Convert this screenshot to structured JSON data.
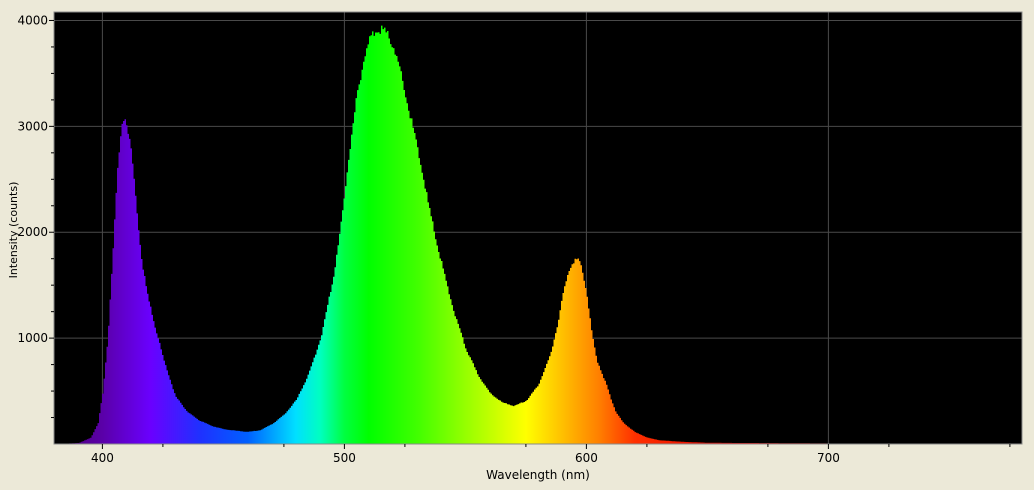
{
  "window": {
    "background": "#ece9d8"
  },
  "chart_data": {
    "type": "area",
    "xlabel": "Wavelength (nm)",
    "ylabel": "Intensity (counts)",
    "xlim": [
      380,
      780
    ],
    "ylim": [
      0,
      4080
    ],
    "x_ticks": [
      400,
      500,
      600,
      700
    ],
    "y_ticks": [
      1000,
      2000,
      3000,
      4000
    ],
    "grid": true,
    "plot_background": "#000000",
    "grid_color": "#4a4a4a",
    "fill": "visible-spectrum-gradient",
    "series": [
      {
        "x": [
          382,
          390,
          395,
          398,
          400,
          402,
          404,
          406,
          408,
          409,
          410,
          412,
          414,
          416,
          418,
          420,
          425,
          430,
          435,
          440,
          445,
          450,
          455,
          460,
          465,
          470,
          475,
          480,
          485,
          490,
          495,
          498,
          500,
          502,
          505,
          508,
          510,
          512,
          514,
          515,
          516,
          518,
          520,
          522,
          525,
          530,
          535,
          540,
          545,
          550,
          555,
          560,
          565,
          570,
          575,
          580,
          585,
          588,
          590,
          592,
          594,
          596,
          597,
          598,
          600,
          602,
          604,
          606,
          608,
          610,
          612,
          615,
          620,
          625,
          630,
          640,
          650,
          660,
          680,
          700,
          720,
          740,
          760,
          780
        ],
        "y": [
          0,
          10,
          60,
          200,
          500,
          1000,
          1800,
          2600,
          3050,
          3100,
          3020,
          2700,
          2200,
          1750,
          1450,
          1250,
          800,
          450,
          300,
          220,
          170,
          140,
          125,
          115,
          130,
          190,
          280,
          420,
          660,
          1000,
          1550,
          2000,
          2400,
          2800,
          3300,
          3650,
          3800,
          3880,
          3910,
          3920,
          3900,
          3850,
          3750,
          3600,
          3300,
          2800,
          2200,
          1700,
          1250,
          900,
          650,
          480,
          390,
          360,
          410,
          560,
          850,
          1150,
          1400,
          1600,
          1720,
          1740,
          1720,
          1660,
          1400,
          1050,
          800,
          680,
          560,
          420,
          300,
          200,
          110,
          60,
          35,
          20,
          12,
          10,
          8,
          5,
          3,
          2,
          1,
          0
        ]
      }
    ]
  }
}
